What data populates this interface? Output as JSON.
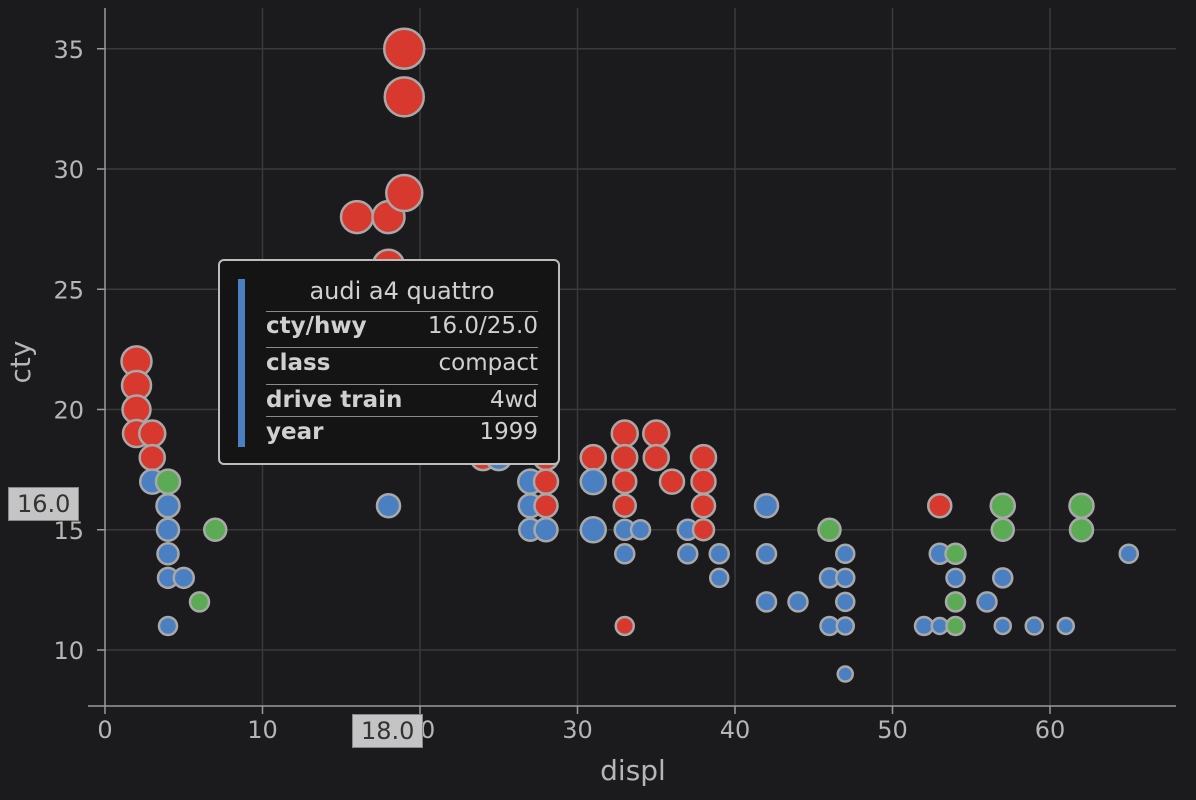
{
  "chart_data": {
    "type": "scatter",
    "title": "",
    "xlabel": "displ",
    "ylabel": "cty",
    "xlim": [
      0,
      68
    ],
    "ylim": [
      8,
      36
    ],
    "x_ticks": [
      0,
      10,
      20,
      30,
      40,
      50,
      60
    ],
    "y_ticks": [
      10,
      15,
      20,
      25,
      30,
      35
    ],
    "grid": true,
    "colors": {
      "blue": "#4a7fc1",
      "red": "#d8392f",
      "green": "#5aab54"
    },
    "points": [
      {
        "x": 2,
        "y": 22,
        "c": "red",
        "s": 30
      },
      {
        "x": 2,
        "y": 21,
        "c": "red",
        "s": 29
      },
      {
        "x": 2,
        "y": 20,
        "c": "red",
        "s": 28
      },
      {
        "x": 2,
        "y": 19,
        "c": "red",
        "s": 27
      },
      {
        "x": 3,
        "y": 19,
        "c": "red",
        "s": 26
      },
      {
        "x": 3,
        "y": 18,
        "c": "red",
        "s": 25
      },
      {
        "x": 3,
        "y": 17,
        "c": "blue",
        "s": 24
      },
      {
        "x": 4,
        "y": 17,
        "c": "green",
        "s": 24
      },
      {
        "x": 4,
        "y": 16,
        "c": "blue",
        "s": 23
      },
      {
        "x": 4,
        "y": 15,
        "c": "blue",
        "s": 22
      },
      {
        "x": 4,
        "y": 14,
        "c": "blue",
        "s": 21
      },
      {
        "x": 4,
        "y": 13,
        "c": "blue",
        "s": 20
      },
      {
        "x": 5,
        "y": 13,
        "c": "blue",
        "s": 20
      },
      {
        "x": 4,
        "y": 11,
        "c": "blue",
        "s": 18
      },
      {
        "x": 6,
        "y": 12,
        "c": "green",
        "s": 19
      },
      {
        "x": 7,
        "y": 15,
        "c": "green",
        "s": 22
      },
      {
        "x": 16,
        "y": 28,
        "c": "red",
        "s": 32
      },
      {
        "x": 18,
        "y": 28,
        "c": "red",
        "s": 32
      },
      {
        "x": 18,
        "y": 26,
        "c": "red",
        "s": 31
      },
      {
        "x": 19,
        "y": 35,
        "c": "red",
        "s": 40
      },
      {
        "x": 19,
        "y": 33,
        "c": "red",
        "s": 39
      },
      {
        "x": 19,
        "y": 29,
        "c": "red",
        "s": 36
      },
      {
        "x": 18,
        "y": 16,
        "c": "blue",
        "s": 23
      },
      {
        "x": 24,
        "y": 18,
        "c": "red",
        "s": 25
      },
      {
        "x": 25,
        "y": 18,
        "c": "blue",
        "s": 25
      },
      {
        "x": 27,
        "y": 17,
        "c": "blue",
        "s": 24
      },
      {
        "x": 27,
        "y": 16,
        "c": "blue",
        "s": 23
      },
      {
        "x": 27,
        "y": 15,
        "c": "blue",
        "s": 22
      },
      {
        "x": 28,
        "y": 18,
        "c": "red",
        "s": 25
      },
      {
        "x": 28,
        "y": 17,
        "c": "red",
        "s": 24
      },
      {
        "x": 28,
        "y": 16,
        "c": "red",
        "s": 23
      },
      {
        "x": 28,
        "y": 15,
        "c": "blue",
        "s": 23
      },
      {
        "x": 31,
        "y": 18,
        "c": "red",
        "s": 25
      },
      {
        "x": 31,
        "y": 17,
        "c": "blue",
        "s": 25
      },
      {
        "x": 31,
        "y": 15,
        "c": "blue",
        "s": 25
      },
      {
        "x": 33,
        "y": 19,
        "c": "red",
        "s": 26
      },
      {
        "x": 33,
        "y": 18,
        "c": "red",
        "s": 25
      },
      {
        "x": 33,
        "y": 17,
        "c": "red",
        "s": 23
      },
      {
        "x": 33,
        "y": 16,
        "c": "red",
        "s": 22
      },
      {
        "x": 33,
        "y": 15,
        "c": "blue",
        "s": 20
      },
      {
        "x": 33,
        "y": 14,
        "c": "blue",
        "s": 19
      },
      {
        "x": 33,
        "y": 11,
        "c": "red",
        "s": 18
      },
      {
        "x": 34,
        "y": 15,
        "c": "blue",
        "s": 19
      },
      {
        "x": 35,
        "y": 19,
        "c": "red",
        "s": 26
      },
      {
        "x": 35,
        "y": 18,
        "c": "red",
        "s": 25
      },
      {
        "x": 36,
        "y": 17,
        "c": "red",
        "s": 24
      },
      {
        "x": 37,
        "y": 15,
        "c": "blue",
        "s": 20
      },
      {
        "x": 37,
        "y": 14,
        "c": "blue",
        "s": 19
      },
      {
        "x": 38,
        "y": 18,
        "c": "red",
        "s": 25
      },
      {
        "x": 38,
        "y": 17,
        "c": "red",
        "s": 24
      },
      {
        "x": 38,
        "y": 16,
        "c": "red",
        "s": 23
      },
      {
        "x": 38,
        "y": 15,
        "c": "red",
        "s": 21
      },
      {
        "x": 39,
        "y": 14,
        "c": "blue",
        "s": 19
      },
      {
        "x": 39,
        "y": 13,
        "c": "blue",
        "s": 18
      },
      {
        "x": 42,
        "y": 16,
        "c": "blue",
        "s": 23
      },
      {
        "x": 42,
        "y": 14,
        "c": "blue",
        "s": 19
      },
      {
        "x": 42,
        "y": 12,
        "c": "blue",
        "s": 19
      },
      {
        "x": 44,
        "y": 12,
        "c": "blue",
        "s": 19
      },
      {
        "x": 46,
        "y": 15,
        "c": "green",
        "s": 22
      },
      {
        "x": 46,
        "y": 13,
        "c": "blue",
        "s": 19
      },
      {
        "x": 46,
        "y": 11,
        "c": "blue",
        "s": 18
      },
      {
        "x": 47,
        "y": 14,
        "c": "blue",
        "s": 18
      },
      {
        "x": 47,
        "y": 13,
        "c": "blue",
        "s": 18
      },
      {
        "x": 47,
        "y": 12,
        "c": "blue",
        "s": 18
      },
      {
        "x": 47,
        "y": 11,
        "c": "blue",
        "s": 17
      },
      {
        "x": 47,
        "y": 9,
        "c": "blue",
        "s": 15
      },
      {
        "x": 52,
        "y": 11,
        "c": "blue",
        "s": 18
      },
      {
        "x": 53,
        "y": 16,
        "c": "red",
        "s": 23
      },
      {
        "x": 53,
        "y": 14,
        "c": "blue",
        "s": 20
      },
      {
        "x": 53,
        "y": 11,
        "c": "blue",
        "s": 16
      },
      {
        "x": 54,
        "y": 14,
        "c": "green",
        "s": 20
      },
      {
        "x": 54,
        "y": 13,
        "c": "blue",
        "s": 18
      },
      {
        "x": 54,
        "y": 12,
        "c": "green",
        "s": 19
      },
      {
        "x": 54,
        "y": 11,
        "c": "green",
        "s": 18
      },
      {
        "x": 56,
        "y": 12,
        "c": "blue",
        "s": 19
      },
      {
        "x": 57,
        "y": 16,
        "c": "green",
        "s": 24
      },
      {
        "x": 57,
        "y": 15,
        "c": "green",
        "s": 22
      },
      {
        "x": 57,
        "y": 13,
        "c": "blue",
        "s": 19
      },
      {
        "x": 57,
        "y": 11,
        "c": "blue",
        "s": 16
      },
      {
        "x": 59,
        "y": 11,
        "c": "blue",
        "s": 17
      },
      {
        "x": 61,
        "y": 11,
        "c": "blue",
        "s": 16
      },
      {
        "x": 62,
        "y": 16,
        "c": "green",
        "s": 24
      },
      {
        "x": 62,
        "y": 15,
        "c": "green",
        "s": 23
      },
      {
        "x": 65,
        "y": 14,
        "c": "blue",
        "s": 18
      }
    ],
    "crosshair": {
      "x_label": "18.0",
      "y_label": "16.0"
    },
    "tooltip": {
      "title": "audi a4 quattro",
      "rows": [
        {
          "key": "cty/hwy",
          "value": "16.0/25.0"
        },
        {
          "key": "class",
          "value": "compact"
        },
        {
          "key": "drive train",
          "value": "4wd"
        },
        {
          "key": "year",
          "value": "1999"
        }
      ],
      "color": "#4a7fc1"
    }
  }
}
